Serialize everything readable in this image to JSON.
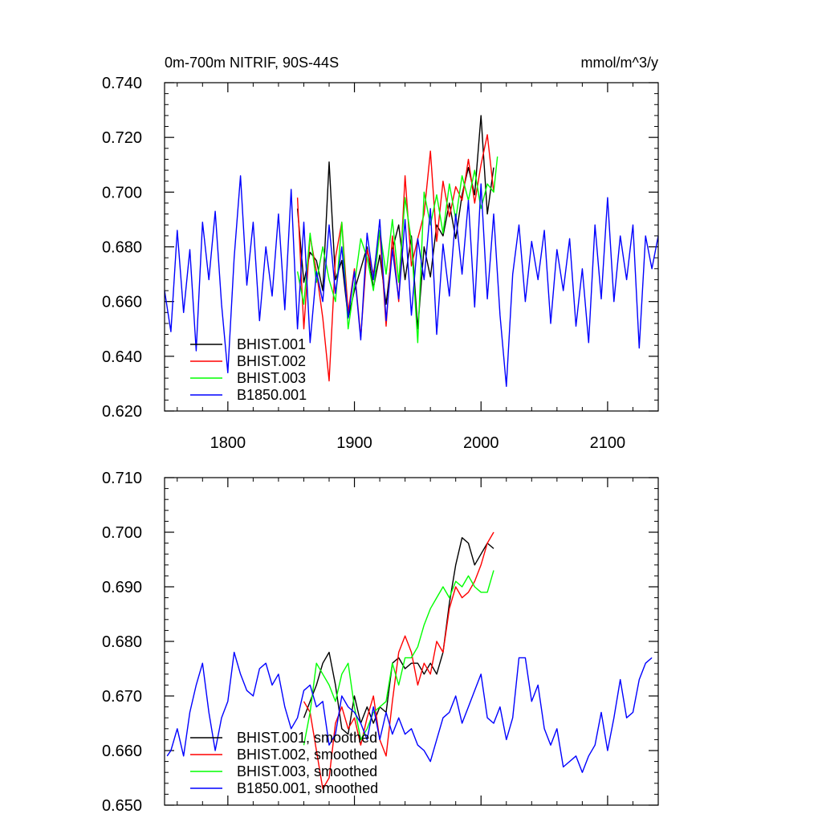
{
  "chart_data": [
    {
      "type": "line",
      "title": "0m-700m NITRIF, 90S-44S",
      "units": "mmol/m^3/y",
      "xlim": [
        1750,
        2140
      ],
      "ylim": [
        0.62,
        0.74
      ],
      "xticks": [
        1800,
        1900,
        2000,
        2100
      ],
      "xtick_labels": [
        "1800",
        "1900",
        "2000",
        "2100"
      ],
      "yticks": [
        0.62,
        0.64,
        0.66,
        0.68,
        0.7,
        0.72,
        0.74
      ],
      "ytick_labels": [
        "0.620",
        "0.640",
        "0.660",
        "0.680",
        "0.700",
        "0.720",
        "0.740"
      ],
      "legend_position": "bottom-left",
      "series": [
        {
          "name": "BHIST.001",
          "color": "#000000",
          "x": [
            1855,
            1860,
            1865,
            1870,
            1875,
            1880,
            1885,
            1890,
            1895,
            1900,
            1905,
            1910,
            1915,
            1920,
            1925,
            1930,
            1935,
            1940,
            1945,
            1950,
            1955,
            1960,
            1965,
            1970,
            1975,
            1980,
            1985,
            1990,
            1995,
            2000,
            2005,
            2010
          ],
          "y": [
            0.694,
            0.667,
            0.678,
            0.675,
            0.664,
            0.711,
            0.668,
            0.675,
            0.654,
            0.664,
            0.672,
            0.68,
            0.665,
            0.677,
            0.659,
            0.679,
            0.688,
            0.668,
            0.684,
            0.65,
            0.68,
            0.669,
            0.688,
            0.684,
            0.696,
            0.683,
            0.699,
            0.709,
            0.699,
            0.728,
            0.692,
            0.709
          ]
        },
        {
          "name": "BHIST.002",
          "color": "#ff0000",
          "x": [
            1855,
            1860,
            1865,
            1870,
            1875,
            1880,
            1885,
            1890,
            1895,
            1900,
            1905,
            1910,
            1915,
            1920,
            1925,
            1930,
            1935,
            1940,
            1945,
            1950,
            1955,
            1960,
            1965,
            1970,
            1975,
            1980,
            1985,
            1990,
            1995,
            2000,
            2005,
            2010
          ],
          "y": [
            0.698,
            0.65,
            0.684,
            0.671,
            0.654,
            0.631,
            0.676,
            0.689,
            0.656,
            0.672,
            0.647,
            0.679,
            0.67,
            0.686,
            0.651,
            0.684,
            0.66,
            0.706,
            0.673,
            0.683,
            0.692,
            0.715,
            0.682,
            0.704,
            0.691,
            0.702,
            0.697,
            0.712,
            0.696,
            0.71,
            0.721,
            0.7
          ]
        },
        {
          "name": "BHIST.003",
          "color": "#00ff00",
          "x": [
            1855,
            1860,
            1865,
            1870,
            1875,
            1880,
            1885,
            1890,
            1895,
            1900,
            1905,
            1910,
            1915,
            1920,
            1925,
            1930,
            1935,
            1940,
            1945,
            1950,
            1955,
            1960,
            1965,
            1970,
            1975,
            1980,
            1985,
            1990,
            1995,
            2000,
            2005,
            2010,
            2013
          ],
          "y": [
            0.671,
            0.659,
            0.685,
            0.667,
            0.68,
            0.668,
            0.66,
            0.689,
            0.65,
            0.666,
            0.683,
            0.676,
            0.664,
            0.686,
            0.67,
            0.69,
            0.667,
            0.698,
            0.682,
            0.645,
            0.7,
            0.688,
            0.699,
            0.685,
            0.703,
            0.69,
            0.706,
            0.697,
            0.708,
            0.694,
            0.703,
            0.7,
            0.713
          ]
        },
        {
          "name": "B1850.001",
          "color": "#0000ff",
          "x": [
            1750,
            1755,
            1760,
            1765,
            1770,
            1775,
            1780,
            1785,
            1790,
            1795,
            1800,
            1805,
            1810,
            1815,
            1820,
            1825,
            1830,
            1835,
            1840,
            1845,
            1850,
            1855,
            1860,
            1865,
            1870,
            1875,
            1880,
            1885,
            1890,
            1895,
            1900,
            1905,
            1910,
            1915,
            1920,
            1925,
            1930,
            1935,
            1940,
            1945,
            1950,
            1955,
            1960,
            1965,
            1970,
            1975,
            1980,
            1985,
            1990,
            1995,
            2000,
            2005,
            2010,
            2015,
            2020,
            2025,
            2030,
            2035,
            2040,
            2045,
            2050,
            2055,
            2060,
            2065,
            2070,
            2075,
            2080,
            2085,
            2090,
            2095,
            2100,
            2105,
            2110,
            2115,
            2120,
            2125,
            2130,
            2135,
            2140
          ],
          "y": [
            0.664,
            0.649,
            0.686,
            0.656,
            0.679,
            0.642,
            0.689,
            0.668,
            0.693,
            0.659,
            0.634,
            0.676,
            0.706,
            0.666,
            0.689,
            0.653,
            0.68,
            0.662,
            0.692,
            0.657,
            0.701,
            0.65,
            0.689,
            0.645,
            0.671,
            0.66,
            0.688,
            0.663,
            0.68,
            0.654,
            0.671,
            0.646,
            0.685,
            0.668,
            0.69,
            0.653,
            0.679,
            0.661,
            0.69,
            0.655,
            0.683,
            0.668,
            0.694,
            0.648,
            0.681,
            0.662,
            0.692,
            0.67,
            0.697,
            0.658,
            0.703,
            0.661,
            0.692,
            0.655,
            0.629,
            0.67,
            0.688,
            0.66,
            0.682,
            0.668,
            0.686,
            0.652,
            0.679,
            0.664,
            0.683,
            0.651,
            0.672,
            0.645,
            0.688,
            0.661,
            0.698,
            0.66,
            0.684,
            0.668,
            0.688,
            0.643,
            0.684,
            0.672,
            0.684
          ]
        }
      ]
    },
    {
      "type": "line",
      "xlim": [
        1750,
        2140
      ],
      "ylim": [
        0.65,
        0.71
      ],
      "xticks": [
        1800,
        1900,
        2000,
        2100
      ],
      "yticks": [
        0.65,
        0.66,
        0.67,
        0.68,
        0.69,
        0.7,
        0.71
      ],
      "ytick_labels": [
        "0.650",
        "0.660",
        "0.670",
        "0.680",
        "0.690",
        "0.700",
        "0.710"
      ],
      "legend_position": "bottom-left",
      "series": [
        {
          "name": "BHIST.001, smoothed",
          "color": "#000000",
          "x": [
            1860,
            1865,
            1870,
            1875,
            1880,
            1885,
            1890,
            1895,
            1900,
            1905,
            1910,
            1915,
            1920,
            1925,
            1930,
            1935,
            1940,
            1945,
            1950,
            1955,
            1960,
            1965,
            1970,
            1975,
            1980,
            1985,
            1990,
            1995,
            2000,
            2005,
            2010
          ],
          "y": [
            0.666,
            0.669,
            0.672,
            0.676,
            0.678,
            0.672,
            0.664,
            0.663,
            0.67,
            0.665,
            0.668,
            0.665,
            0.668,
            0.667,
            0.676,
            0.677,
            0.675,
            0.676,
            0.676,
            0.674,
            0.676,
            0.674,
            0.678,
            0.687,
            0.694,
            0.699,
            0.698,
            0.694,
            0.696,
            0.698,
            0.697
          ]
        },
        {
          "name": "BHIST.002, smoothed",
          "color": "#ff0000",
          "x": [
            1860,
            1865,
            1870,
            1875,
            1880,
            1885,
            1890,
            1895,
            1900,
            1905,
            1910,
            1915,
            1920,
            1925,
            1930,
            1935,
            1940,
            1945,
            1950,
            1955,
            1960,
            1965,
            1970,
            1975,
            1980,
            1985,
            1990,
            1995,
            2000,
            2005,
            2010
          ],
          "y": [
            0.669,
            0.667,
            0.66,
            0.653,
            0.655,
            0.665,
            0.668,
            0.664,
            0.666,
            0.661,
            0.666,
            0.67,
            0.662,
            0.659,
            0.669,
            0.678,
            0.681,
            0.678,
            0.672,
            0.676,
            0.674,
            0.68,
            0.678,
            0.686,
            0.69,
            0.688,
            0.689,
            0.691,
            0.694,
            0.698,
            0.7
          ]
        },
        {
          "name": "BHIST.003, smoothed",
          "color": "#00ff00",
          "x": [
            1860,
            1865,
            1870,
            1875,
            1880,
            1885,
            1890,
            1895,
            1900,
            1905,
            1910,
            1915,
            1920,
            1925,
            1930,
            1935,
            1940,
            1945,
            1950,
            1955,
            1960,
            1965,
            1970,
            1975,
            1980,
            1985,
            1990,
            1995,
            2000,
            2005,
            2010
          ],
          "y": [
            0.661,
            0.667,
            0.676,
            0.674,
            0.672,
            0.669,
            0.674,
            0.676,
            0.668,
            0.662,
            0.664,
            0.667,
            0.668,
            0.669,
            0.676,
            0.672,
            0.677,
            0.677,
            0.679,
            0.683,
            0.686,
            0.688,
            0.69,
            0.688,
            0.691,
            0.69,
            0.692,
            0.69,
            0.689,
            0.689,
            0.693
          ]
        },
        {
          "name": "B1850.001, smoothed",
          "color": "#0000ff",
          "x": [
            1752,
            1755,
            1760,
            1765,
            1770,
            1775,
            1780,
            1785,
            1790,
            1795,
            1800,
            1805,
            1810,
            1815,
            1820,
            1825,
            1830,
            1835,
            1840,
            1845,
            1850,
            1855,
            1860,
            1865,
            1870,
            1875,
            1880,
            1885,
            1890,
            1895,
            1900,
            1905,
            1910,
            1915,
            1920,
            1925,
            1930,
            1935,
            1940,
            1945,
            1950,
            1955,
            1960,
            1965,
            1970,
            1975,
            1980,
            1985,
            1990,
            1995,
            2000,
            2005,
            2010,
            2015,
            2020,
            2025,
            2030,
            2035,
            2040,
            2045,
            2050,
            2055,
            2060,
            2065,
            2070,
            2075,
            2080,
            2085,
            2090,
            2095,
            2100,
            2105,
            2110,
            2115,
            2120,
            2125,
            2130,
            2135
          ],
          "y": [
            0.659,
            0.66,
            0.664,
            0.659,
            0.667,
            0.672,
            0.676,
            0.667,
            0.66,
            0.666,
            0.669,
            0.678,
            0.674,
            0.671,
            0.67,
            0.675,
            0.676,
            0.672,
            0.674,
            0.668,
            0.664,
            0.666,
            0.671,
            0.672,
            0.668,
            0.669,
            0.661,
            0.663,
            0.67,
            0.668,
            0.667,
            0.665,
            0.662,
            0.668,
            0.662,
            0.667,
            0.663,
            0.666,
            0.663,
            0.664,
            0.661,
            0.66,
            0.658,
            0.662,
            0.666,
            0.667,
            0.67,
            0.665,
            0.668,
            0.671,
            0.674,
            0.666,
            0.665,
            0.668,
            0.662,
            0.666,
            0.677,
            0.677,
            0.669,
            0.672,
            0.664,
            0.661,
            0.664,
            0.657,
            0.658,
            0.659,
            0.656,
            0.659,
            0.661,
            0.667,
            0.66,
            0.666,
            0.673,
            0.666,
            0.667,
            0.673,
            0.676,
            0.677
          ]
        }
      ]
    }
  ]
}
